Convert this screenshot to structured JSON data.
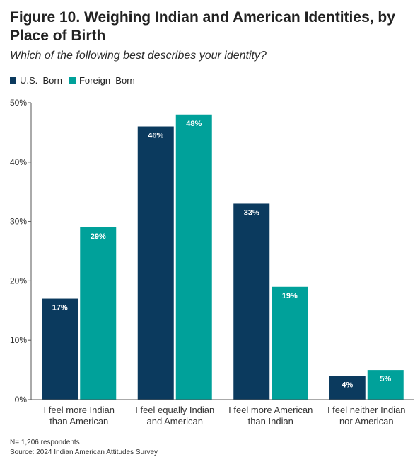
{
  "header": {
    "title": "Figure 10. Weighing Indian and American Identities, by Place of Birth",
    "subtitle": "Which of the following best describes your identity?"
  },
  "legend": {
    "items": [
      {
        "label": "U.S.–Born",
        "color": "#0b3a5e"
      },
      {
        "label": "Foreign–Born",
        "color": "#00a19a"
      }
    ]
  },
  "footer": {
    "n_note": "N= 1,206 respondents",
    "source": "Source: 2024 Indian American Attitudes Survey"
  },
  "chart_data": {
    "type": "bar",
    "title": "Figure 10. Weighing Indian and American Identities, by Place of Birth",
    "subtitle": "Which of the following best describes your identity?",
    "categories": [
      [
        "I feel more Indian",
        "than American"
      ],
      [
        "I feel equally Indian",
        "and American"
      ],
      [
        "I feel more American",
        "than Indian"
      ],
      [
        "I feel neither Indian",
        "nor American"
      ]
    ],
    "series": [
      {
        "name": "U.S.–Born",
        "values": [
          17,
          46,
          33,
          4
        ],
        "labels": [
          "17%",
          "46%",
          "33%",
          "4%"
        ],
        "color": "#0b3a5e"
      },
      {
        "name": "Foreign–Born",
        "values": [
          29,
          48,
          19,
          5
        ],
        "labels": [
          "29%",
          "48%",
          "19%",
          "5%"
        ],
        "color": "#00a19a"
      }
    ],
    "ylim": [
      0,
      50
    ],
    "yticks": [
      0,
      10,
      20,
      30,
      40,
      50
    ],
    "ytick_labels": [
      "0%",
      "10%",
      "20%",
      "30%",
      "40%",
      "50%"
    ],
    "grid": false,
    "legend_position": "top-left"
  }
}
